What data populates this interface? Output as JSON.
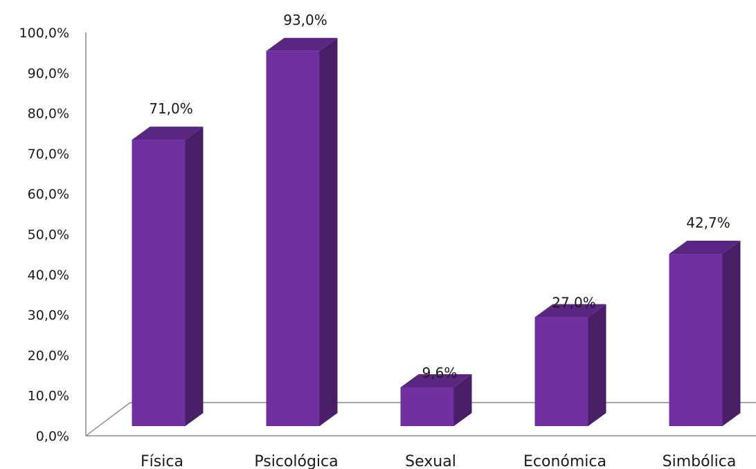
{
  "chart_data": {
    "type": "bar",
    "categories": [
      "Física",
      "Psicológica",
      "Sexual",
      "Económica",
      "Simbólica"
    ],
    "values": [
      71.0,
      93.0,
      9.6,
      27.0,
      42.7
    ],
    "data_labels": [
      "71,0%",
      "93,0%",
      "9,6%",
      "27,0%",
      "42,7%"
    ],
    "yticks": [
      "0,0%",
      "10,0%",
      "20,0%",
      "30,0%",
      "40,0%",
      "50,0%",
      "60,0%",
      "70,0%",
      "80,0%",
      "90,0%",
      "100,0%"
    ],
    "ylim": [
      0,
      100
    ],
    "grid": false,
    "legend": "none",
    "style": "3d-column",
    "colors": {
      "front": "#6f2f9e",
      "side": "#481e67",
      "top": "#5a2682",
      "axis": "#8c8c8c"
    }
  }
}
